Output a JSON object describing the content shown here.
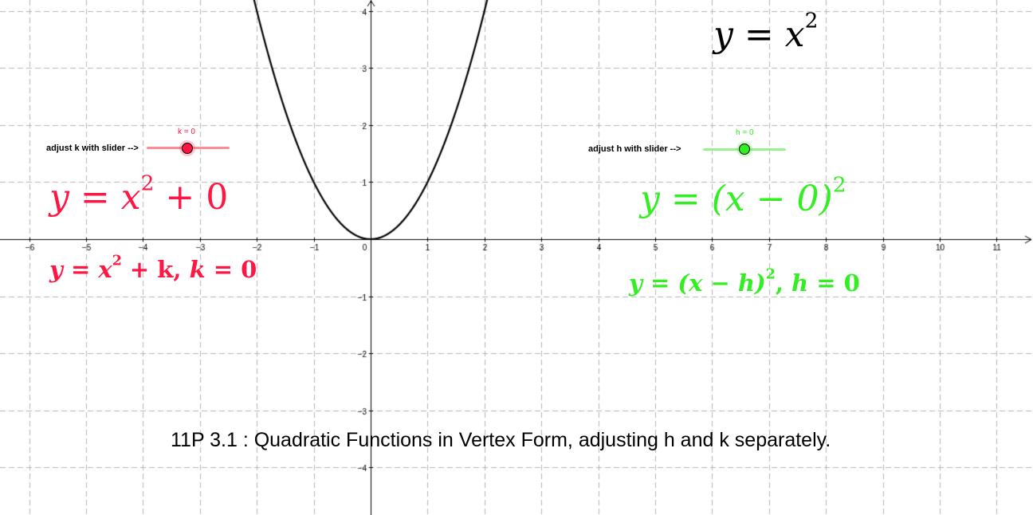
{
  "colors": {
    "k_color": "#ff1744",
    "h_color": "#33ee22",
    "axis": "#000000",
    "grid": "#b4b4b4",
    "curve": "#000000"
  },
  "graph": {
    "x_range": [
      -6.5,
      11.6
    ],
    "y_range": [
      -4.5,
      4.2
    ],
    "x_tick_labels": [
      "−6",
      "−5",
      "−4",
      "−3",
      "−2",
      "−1",
      "0",
      "1",
      "2",
      "3",
      "4",
      "5",
      "6",
      "7",
      "8",
      "9",
      "10",
      "11"
    ],
    "y_tick_labels": [
      "4",
      "3",
      "2",
      "1",
      "−1",
      "−2",
      "−3",
      "−4"
    ],
    "grid": true,
    "curve_function": "y = x^2"
  },
  "equation_top": {
    "lhs": "y",
    "eq": "=",
    "base": "x",
    "exp": "2"
  },
  "k_slider": {
    "caption": "adjust k with slider -->",
    "value_label": "k = 0",
    "value": 0,
    "range_fraction": 0.5
  },
  "h_slider": {
    "caption": "adjust h with slider -->",
    "value_label": "h = 0",
    "value": 0,
    "range_fraction": 0.5
  },
  "k_equation_large": {
    "lhs": "y",
    "eq": "=",
    "base": "x",
    "exp": "2",
    "rest": " + 0"
  },
  "k_equation_small": {
    "lhs": "y",
    "eq": "=",
    "base": "x",
    "exp": "2",
    "rest": " + k,  ",
    "var": "k",
    "val": " = 0"
  },
  "h_equation_large": {
    "lhs": "y",
    "eq": "=",
    "open": "(x − 0)",
    "exp": "2"
  },
  "h_equation_small": {
    "lhs": "y",
    "eq": "=",
    "open": "(x − h)",
    "exp": "2",
    "rest": ",  ",
    "var": "h",
    "val": " = 0"
  },
  "caption": "11P  3.1 : Quadratic Functions in Vertex Form, adjusting h and k separately."
}
